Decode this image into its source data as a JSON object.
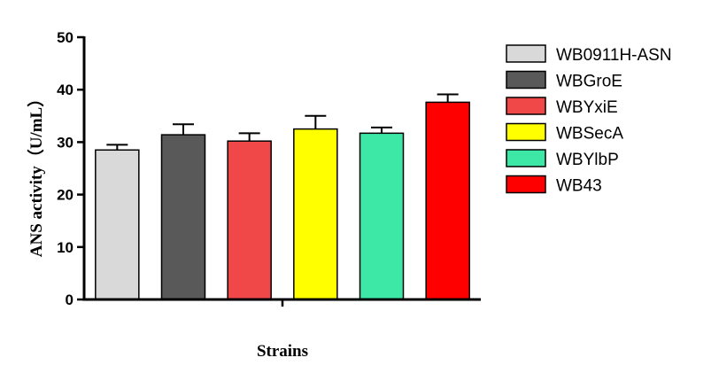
{
  "chart_data": {
    "type": "bar",
    "title": "",
    "xlabel": "Strains",
    "ylabel": "ANS activity（U/mL）",
    "ylim": [
      0,
      50
    ],
    "yticks": [
      0,
      10,
      20,
      30,
      40,
      50
    ],
    "grid": false,
    "legend_position": "right",
    "categories": [
      "WB0911H-ASN",
      "WBGroE",
      "WBYxiE",
      "WBSecA",
      "WBYlbP",
      "WB43"
    ],
    "values": [
      28.5,
      31.4,
      30.2,
      32.5,
      31.7,
      37.6
    ],
    "errors": [
      1.0,
      2.0,
      1.5,
      2.5,
      1.1,
      1.5
    ],
    "colors": [
      "#d9d9d9",
      "#595959",
      "#f04848",
      "#ffff00",
      "#3de8a6",
      "#ff0000"
    ]
  }
}
